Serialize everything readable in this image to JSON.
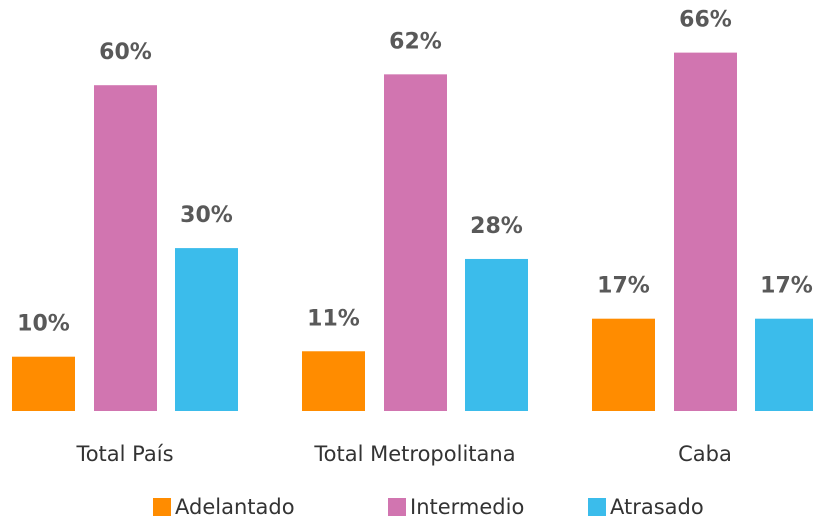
{
  "chart_data": {
    "type": "bar",
    "categories": [
      "Total País",
      "Total Metropolitana",
      "Caba"
    ],
    "series": [
      {
        "name": "Adelantado",
        "color": "#ff8c00",
        "values": [
          10,
          11,
          17
        ],
        "value_labels": [
          "10%",
          "11%",
          "17%"
        ]
      },
      {
        "name": "Intermedio",
        "color": "#d175b0",
        "values": [
          60,
          62,
          66
        ],
        "value_labels": [
          "60%",
          "62%",
          "66%"
        ]
      },
      {
        "name": "Atrasado",
        "color": "#3bbceb",
        "values": [
          30,
          28,
          17
        ],
        "value_labels": [
          "30%",
          "28%",
          "17%"
        ]
      }
    ],
    "legend": "bottom"
  }
}
